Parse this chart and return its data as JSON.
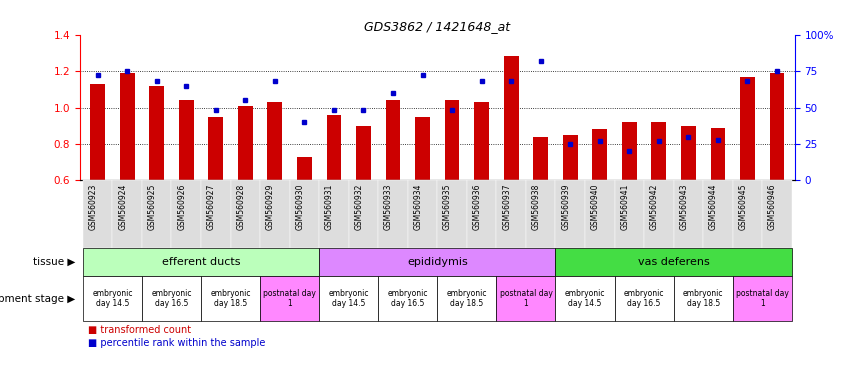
{
  "title": "GDS3862 / 1421648_at",
  "samples": [
    "GSM560923",
    "GSM560924",
    "GSM560925",
    "GSM560926",
    "GSM560927",
    "GSM560928",
    "GSM560929",
    "GSM560930",
    "GSM560931",
    "GSM560932",
    "GSM560933",
    "GSM560934",
    "GSM560935",
    "GSM560936",
    "GSM560937",
    "GSM560938",
    "GSM560939",
    "GSM560940",
    "GSM560941",
    "GSM560942",
    "GSM560943",
    "GSM560944",
    "GSM560945",
    "GSM560946"
  ],
  "red_values": [
    1.13,
    1.19,
    1.12,
    1.04,
    0.95,
    1.01,
    1.03,
    0.73,
    0.96,
    0.9,
    1.04,
    0.95,
    1.04,
    1.03,
    1.28,
    0.84,
    0.85,
    0.88,
    0.92,
    0.92,
    0.9,
    0.89,
    1.17,
    1.19
  ],
  "blue_values": [
    72,
    75,
    68,
    65,
    48,
    55,
    68,
    40,
    48,
    48,
    60,
    72,
    48,
    68,
    68,
    82,
    25,
    27,
    20,
    27,
    30,
    28,
    68,
    75
  ],
  "ylim_left": [
    0.6,
    1.4
  ],
  "ylim_right": [
    0,
    100
  ],
  "yticks_left": [
    0.6,
    0.8,
    1.0,
    1.2,
    1.4
  ],
  "yticks_right": [
    0,
    25,
    50,
    75,
    100
  ],
  "ytick_labels_right": [
    "0",
    "25",
    "50",
    "75",
    "100%"
  ],
  "bar_color": "#cc0000",
  "dot_color": "#0000cc",
  "tissue_groups": [
    {
      "label": "efferent ducts",
      "start": 0,
      "end": 8,
      "color": "#bbffbb"
    },
    {
      "label": "epididymis",
      "start": 8,
      "end": 16,
      "color": "#dd88ff"
    },
    {
      "label": "vas deferens",
      "start": 16,
      "end": 24,
      "color": "#44dd44"
    }
  ],
  "dev_stage_groups": [
    {
      "label": "embryonic\nday 14.5",
      "start": 0,
      "end": 2,
      "color": "#ffffff"
    },
    {
      "label": "embryonic\nday 16.5",
      "start": 2,
      "end": 4,
      "color": "#ffffff"
    },
    {
      "label": "embryonic\nday 18.5",
      "start": 4,
      "end": 6,
      "color": "#ffffff"
    },
    {
      "label": "postnatal day\n1",
      "start": 6,
      "end": 8,
      "color": "#ff88ff"
    },
    {
      "label": "embryonic\nday 14.5",
      "start": 8,
      "end": 10,
      "color": "#ffffff"
    },
    {
      "label": "embryonic\nday 16.5",
      "start": 10,
      "end": 12,
      "color": "#ffffff"
    },
    {
      "label": "embryonic\nday 18.5",
      "start": 12,
      "end": 14,
      "color": "#ffffff"
    },
    {
      "label": "postnatal day\n1",
      "start": 14,
      "end": 16,
      "color": "#ff88ff"
    },
    {
      "label": "embryonic\nday 14.5",
      "start": 16,
      "end": 18,
      "color": "#ffffff"
    },
    {
      "label": "embryonic\nday 16.5",
      "start": 18,
      "end": 20,
      "color": "#ffffff"
    },
    {
      "label": "embryonic\nday 18.5",
      "start": 20,
      "end": 22,
      "color": "#ffffff"
    },
    {
      "label": "postnatal day\n1",
      "start": 22,
      "end": 24,
      "color": "#ff88ff"
    }
  ],
  "legend_red": "transformed count",
  "legend_blue": "percentile rank within the sample",
  "xlabel_tissue": "tissue",
  "xlabel_devstage": "development stage",
  "background_color": "#ffffff",
  "fig_width": 8.41,
  "fig_height": 3.84,
  "dpi": 100
}
